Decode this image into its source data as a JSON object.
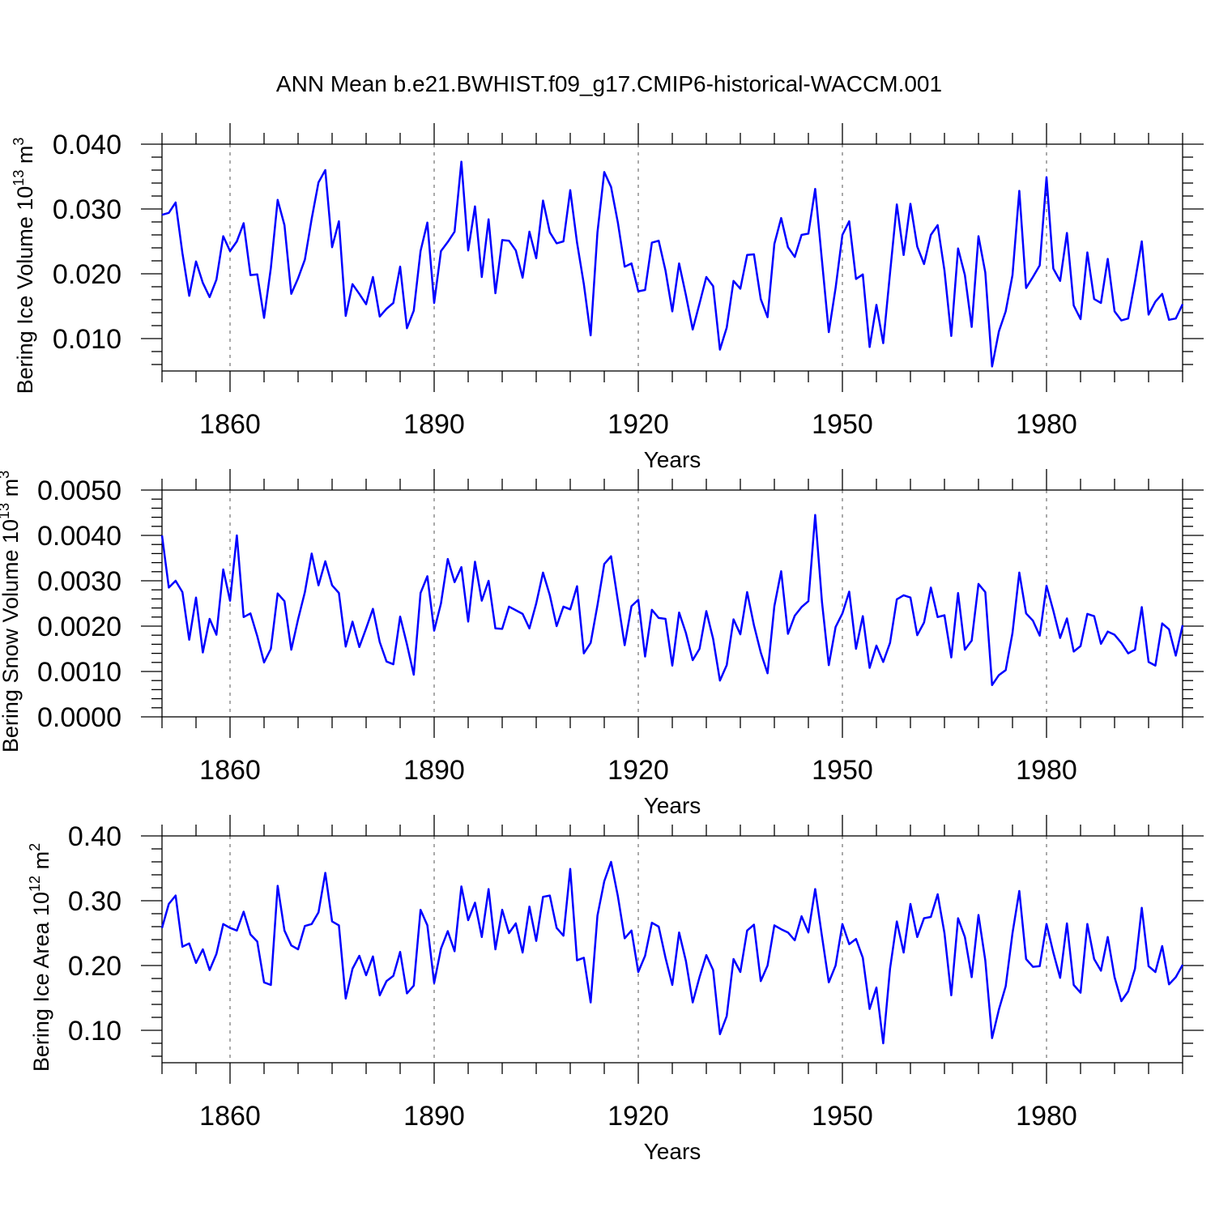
{
  "title": "ANN Mean b.e21.BWHIST.f09_g17.CMIP6-historical-WACCM.001",
  "line_color": "#0000ff",
  "chart_data": [
    {
      "type": "line",
      "ylabel": "Bering Ice Volume 10",
      "ylabel_sup": "13",
      "ylabel_unit": "m",
      "ylabel_unit_sup": "3",
      "xlabel": "Years",
      "xlim": [
        1850,
        2000
      ],
      "ylim": [
        0.005,
        0.04
      ],
      "ytick_values": [
        0.01,
        0.02,
        0.03,
        0.04
      ],
      "ytick_labels": [
        "0.010",
        "0.020",
        "0.030",
        "0.040"
      ],
      "xtick_values": [
        1860,
        1890,
        1920,
        1950,
        1980
      ],
      "xtick_labels": [
        "1860",
        "1890",
        "1920",
        "1950",
        "1980"
      ],
      "series": [
        {
          "name": "Bering Ice Volume",
          "x_start": 1850,
          "x_step": 1,
          "values": [
            0.0291,
            0.0294,
            0.031,
            0.0232,
            0.0166,
            0.0219,
            0.0186,
            0.0164,
            0.0191,
            0.0258,
            0.0235,
            0.025,
            0.0278,
            0.0198,
            0.0199,
            0.0132,
            0.0209,
            0.0314,
            0.0275,
            0.0169,
            0.0193,
            0.0222,
            0.0285,
            0.0341,
            0.036,
            0.0241,
            0.0281,
            0.0135,
            0.0184,
            0.0169,
            0.0153,
            0.0195,
            0.0134,
            0.0146,
            0.0155,
            0.0211,
            0.0116,
            0.0143,
            0.0235,
            0.0279,
            0.0155,
            0.0235,
            0.0249,
            0.0265,
            0.0373,
            0.0236,
            0.0304,
            0.0195,
            0.0284,
            0.017,
            0.0252,
            0.0251,
            0.0236,
            0.0194,
            0.0265,
            0.0224,
            0.0313,
            0.0264,
            0.0247,
            0.025,
            0.0329,
            0.0248,
            0.0184,
            0.0105,
            0.0264,
            0.0357,
            0.0334,
            0.0279,
            0.0211,
            0.0216,
            0.0173,
            0.0175,
            0.0248,
            0.0251,
            0.0205,
            0.0142,
            0.0216,
            0.0167,
            0.0114,
            0.0154,
            0.0195,
            0.0181,
            0.0083,
            0.0117,
            0.0189,
            0.0177,
            0.0229,
            0.023,
            0.0161,
            0.0133,
            0.0246,
            0.0286,
            0.0241,
            0.0226,
            0.026,
            0.0262,
            0.0331,
            0.022,
            0.011,
            0.0178,
            0.026,
            0.0281,
            0.0192,
            0.0199,
            0.0087,
            0.0152,
            0.0093,
            0.0201,
            0.0307,
            0.0229,
            0.0308,
            0.0242,
            0.0215,
            0.026,
            0.0275,
            0.0205,
            0.0104,
            0.0239,
            0.0198,
            0.0118,
            0.0258,
            0.0202,
            0.0057,
            0.0111,
            0.0142,
            0.0198,
            0.0328,
            0.0178,
            0.0195,
            0.0213,
            0.0349,
            0.0208,
            0.0189,
            0.0263,
            0.0151,
            0.013,
            0.0233,
            0.0161,
            0.0155,
            0.0223,
            0.0142,
            0.0128,
            0.0131,
            0.0188,
            0.025,
            0.0137,
            0.0157,
            0.0169,
            0.0129,
            0.0131,
            0.0153
          ]
        }
      ]
    },
    {
      "type": "line",
      "ylabel": "Bering Snow Volume 10",
      "ylabel_sup": "13",
      "ylabel_unit": "m",
      "ylabel_unit_sup": "3",
      "xlabel": "Years",
      "xlim": [
        1850,
        2000
      ],
      "ylim": [
        0.0,
        0.005
      ],
      "ytick_values": [
        0.0,
        0.001,
        0.002,
        0.003,
        0.004,
        0.005
      ],
      "ytick_labels": [
        "0.0000",
        "0.0010",
        "0.0020",
        "0.0030",
        "0.0040",
        "0.0050"
      ],
      "xtick_values": [
        1860,
        1890,
        1920,
        1950,
        1980
      ],
      "xtick_labels": [
        "1860",
        "1890",
        "1920",
        "1950",
        "1980"
      ],
      "series": [
        {
          "name": "Bering Snow Volume",
          "x_start": 1850,
          "x_step": 1,
          "values": [
            0.004,
            0.00285,
            0.003,
            0.00275,
            0.0017,
            0.00263,
            0.00142,
            0.00216,
            0.00181,
            0.00325,
            0.00256,
            0.004,
            0.0022,
            0.00228,
            0.00178,
            0.0012,
            0.0015,
            0.00272,
            0.00255,
            0.00148,
            0.00215,
            0.00275,
            0.0036,
            0.0029,
            0.00343,
            0.0029,
            0.00273,
            0.00155,
            0.0021,
            0.00154,
            0.00195,
            0.00238,
            0.00165,
            0.00122,
            0.00116,
            0.00221,
            0.0016,
            0.00093,
            0.00273,
            0.0031,
            0.0019,
            0.0025,
            0.00348,
            0.00297,
            0.0033,
            0.0021,
            0.00342,
            0.00256,
            0.003,
            0.00195,
            0.00194,
            0.00243,
            0.00235,
            0.00227,
            0.00195,
            0.0025,
            0.00318,
            0.00268,
            0.002,
            0.00243,
            0.00237,
            0.00288,
            0.0014,
            0.00163,
            0.00246,
            0.00337,
            0.00354,
            0.00256,
            0.00158,
            0.00244,
            0.00258,
            0.00133,
            0.00236,
            0.00218,
            0.00216,
            0.00113,
            0.0023,
            0.00185,
            0.00125,
            0.0015,
            0.00233,
            0.00172,
            0.0008,
            0.00114,
            0.00215,
            0.00182,
            0.00275,
            0.00202,
            0.00142,
            0.00096,
            0.00244,
            0.00321,
            0.00183,
            0.00223,
            0.00242,
            0.00255,
            0.00445,
            0.00253,
            0.00114,
            0.00198,
            0.00228,
            0.00276,
            0.0015,
            0.00222,
            0.00108,
            0.00157,
            0.00121,
            0.00163,
            0.00259,
            0.00268,
            0.00263,
            0.0018,
            0.00208,
            0.00285,
            0.0022,
            0.00224,
            0.00131,
            0.00273,
            0.00148,
            0.00168,
            0.00293,
            0.00275,
            0.0007,
            0.00092,
            0.00103,
            0.00185,
            0.00318,
            0.00228,
            0.00212,
            0.00179,
            0.00289,
            0.00234,
            0.00174,
            0.00217,
            0.00144,
            0.00156,
            0.00227,
            0.00222,
            0.00161,
            0.00188,
            0.00181,
            0.00163,
            0.0014,
            0.00148,
            0.00242,
            0.00121,
            0.00113,
            0.00206,
            0.00193,
            0.00135,
            0.00202
          ]
        }
      ]
    },
    {
      "type": "line",
      "ylabel": "Bering Ice Area 10",
      "ylabel_sup": "12",
      "ylabel_unit": "m",
      "ylabel_unit_sup": "2",
      "xlabel": "Years",
      "xlim": [
        1850,
        2000
      ],
      "ylim": [
        0.05,
        0.4
      ],
      "ytick_values": [
        0.1,
        0.2,
        0.3,
        0.4
      ],
      "ytick_labels": [
        "0.10",
        "0.20",
        "0.30",
        "0.40"
      ],
      "xtick_values": [
        1860,
        1890,
        1920,
        1950,
        1980
      ],
      "xtick_labels": [
        "1860",
        "1890",
        "1920",
        "1950",
        "1980"
      ],
      "series": [
        {
          "name": "Bering Ice Area",
          "x_start": 1850,
          "x_step": 1,
          "values": [
            0.258,
            0.295,
            0.308,
            0.229,
            0.234,
            0.204,
            0.225,
            0.193,
            0.218,
            0.264,
            0.258,
            0.254,
            0.283,
            0.248,
            0.237,
            0.174,
            0.17,
            0.323,
            0.254,
            0.231,
            0.225,
            0.261,
            0.264,
            0.282,
            0.343,
            0.268,
            0.262,
            0.149,
            0.195,
            0.215,
            0.185,
            0.214,
            0.154,
            0.176,
            0.184,
            0.221,
            0.157,
            0.169,
            0.286,
            0.262,
            0.173,
            0.226,
            0.253,
            0.222,
            0.322,
            0.27,
            0.297,
            0.244,
            0.318,
            0.225,
            0.286,
            0.25,
            0.265,
            0.22,
            0.291,
            0.238,
            0.306,
            0.308,
            0.258,
            0.246,
            0.349,
            0.208,
            0.212,
            0.143,
            0.277,
            0.33,
            0.36,
            0.307,
            0.242,
            0.254,
            0.19,
            0.215,
            0.266,
            0.26,
            0.212,
            0.17,
            0.251,
            0.207,
            0.143,
            0.182,
            0.216,
            0.193,
            0.094,
            0.122,
            0.21,
            0.19,
            0.254,
            0.263,
            0.176,
            0.2,
            0.262,
            0.256,
            0.251,
            0.239,
            0.276,
            0.251,
            0.318,
            0.245,
            0.174,
            0.2,
            0.264,
            0.233,
            0.241,
            0.212,
            0.133,
            0.166,
            0.08,
            0.195,
            0.268,
            0.22,
            0.295,
            0.244,
            0.273,
            0.275,
            0.31,
            0.25,
            0.154,
            0.273,
            0.244,
            0.182,
            0.278,
            0.208,
            0.088,
            0.132,
            0.168,
            0.25,
            0.315,
            0.21,
            0.198,
            0.199,
            0.264,
            0.22,
            0.181,
            0.265,
            0.17,
            0.158,
            0.264,
            0.21,
            0.192,
            0.244,
            0.182,
            0.145,
            0.16,
            0.195,
            0.289,
            0.199,
            0.19,
            0.23,
            0.171,
            0.182,
            0.201
          ]
        }
      ]
    }
  ]
}
